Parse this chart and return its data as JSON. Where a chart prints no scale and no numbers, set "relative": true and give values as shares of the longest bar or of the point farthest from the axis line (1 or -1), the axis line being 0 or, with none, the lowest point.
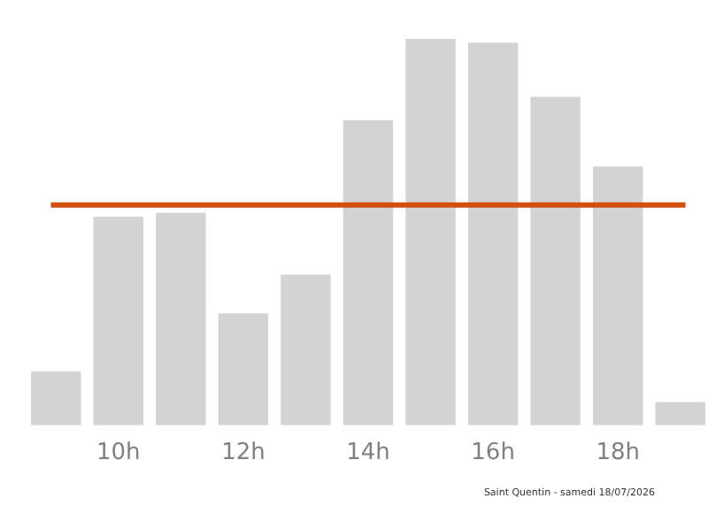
{
  "chart_data": {
    "type": "bar",
    "relative": true,
    "categories": [
      null,
      "10h",
      null,
      "12h",
      null,
      "14h",
      null,
      "16h",
      null,
      "18h",
      null
    ],
    "values": [
      0.14,
      0.54,
      0.55,
      0.29,
      0.39,
      0.79,
      1,
      0.99,
      0.85,
      0.67,
      0.06
    ],
    "color": "#d3d3d3",
    "ref_lines": [
      {
        "axis": "y",
        "value": 0.57,
        "color": "#d2500f",
        "line_style": "solid"
      }
    ],
    "annotations": [
      "Saint Quentin - samedi 18/07/2026"
    ],
    "grid": false,
    "legend": false
  }
}
